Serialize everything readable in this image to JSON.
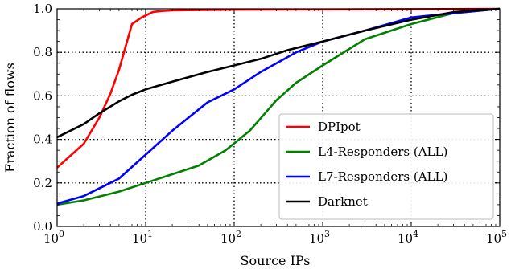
{
  "chart_data": {
    "type": "line",
    "xlabel": "Source IPs",
    "ylabel": "Fraction of flows",
    "xscale": "log",
    "xlim": [
      1,
      100000
    ],
    "ylim": [
      0.0,
      1.0
    ],
    "grid": true,
    "grid_style": "dotted",
    "legend_position": "lower-right",
    "x_ticks": [
      {
        "value": 1,
        "base": "10",
        "exp": "0"
      },
      {
        "value": 10,
        "base": "10",
        "exp": "1"
      },
      {
        "value": 100,
        "base": "10",
        "exp": "2"
      },
      {
        "value": 1000,
        "base": "10",
        "exp": "3"
      },
      {
        "value": 10000,
        "base": "10",
        "exp": "4"
      },
      {
        "value": 100000,
        "base": "10",
        "exp": "5"
      }
    ],
    "y_ticks": [
      {
        "value": 0.0,
        "label": "0.0"
      },
      {
        "value": 0.2,
        "label": "0.2"
      },
      {
        "value": 0.4,
        "label": "0.4"
      },
      {
        "value": 0.6,
        "label": "0.6"
      },
      {
        "value": 0.8,
        "label": "0.8"
      },
      {
        "value": 1.0,
        "label": "1.0"
      }
    ],
    "series": [
      {
        "name": "DPIpot",
        "color": "#ff0000",
        "x": [
          1,
          2,
          3,
          4,
          5,
          7,
          9,
          12,
          15,
          20,
          50,
          100,
          1000,
          100000
        ],
        "y": [
          0.27,
          0.38,
          0.5,
          0.61,
          0.72,
          0.93,
          0.96,
          0.985,
          0.99,
          0.993,
          0.995,
          0.996,
          0.997,
          1.0
        ]
      },
      {
        "name": "L4-Responders (ALL)",
        "color": "#008000",
        "x": [
          1,
          2,
          5,
          10,
          20,
          40,
          80,
          150,
          300,
          500,
          1000,
          3000,
          10000,
          30000,
          100000
        ],
        "y": [
          0.1,
          0.12,
          0.16,
          0.2,
          0.24,
          0.28,
          0.35,
          0.44,
          0.58,
          0.66,
          0.74,
          0.86,
          0.93,
          0.98,
          1.0
        ]
      },
      {
        "name": "L7-Responders (ALL)",
        "color": "#0000ff",
        "x": [
          1,
          2,
          5,
          10,
          20,
          50,
          100,
          200,
          500,
          1000,
          3000,
          10000,
          30000,
          100000
        ],
        "y": [
          0.105,
          0.14,
          0.22,
          0.33,
          0.44,
          0.57,
          0.63,
          0.71,
          0.8,
          0.85,
          0.9,
          0.96,
          0.98,
          1.0
        ]
      },
      {
        "name": "Darknet",
        "color": "#000000",
        "x": [
          1,
          2,
          3,
          5,
          7,
          10,
          20,
          50,
          100,
          200,
          400,
          1000,
          3000,
          10000,
          30000,
          100000
        ],
        "y": [
          0.41,
          0.47,
          0.52,
          0.575,
          0.605,
          0.63,
          0.665,
          0.71,
          0.74,
          0.77,
          0.81,
          0.85,
          0.9,
          0.95,
          0.985,
          1.0
        ]
      }
    ]
  }
}
